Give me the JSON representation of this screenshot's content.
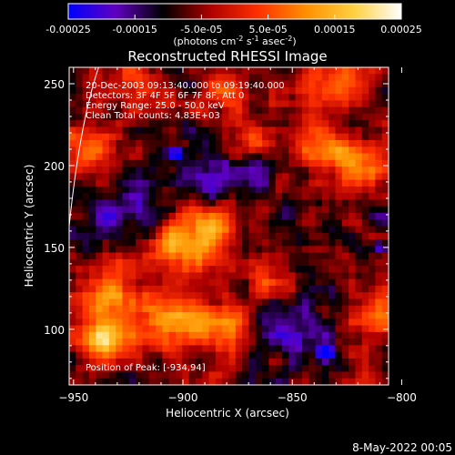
{
  "chart_data": {
    "type": "heatmap",
    "title": "Reconstructed RHESSI Image",
    "xlabel": "Heliocentric X (arcsec)",
    "ylabel": "Heliocentric Y (arcsec)",
    "xlim": [
      -952,
      -806
    ],
    "ylim": [
      66,
      260
    ],
    "x_ticks": [
      -950,
      -900,
      -850,
      -800
    ],
    "y_ticks": [
      100,
      150,
      200,
      250
    ],
    "info_lines": [
      "20-Dec-2003 09:13:40.000 to 09:19:40.000",
      "Detectors: 3F 4F 5F 6F 7F 8F, Att 0",
      "Energy Range: 25.0 - 50.0 keV",
      "Clean    Total counts: 4.83E+03"
    ],
    "peak_label": "Position of Peak:  [-934,94]",
    "peak_position": [
      -934,
      94
    ],
    "colorbar": {
      "min": -0.00025,
      "max": 0.00025,
      "tick_labels": [
        "-0.00025",
        "-0.00015",
        "-5.0e-05",
        "5.0e-05",
        "0.00015",
        "0.00025"
      ],
      "tick_values": [
        -0.00025,
        -0.00015,
        -5e-05,
        5e-05,
        0.00015,
        0.00025
      ],
      "unit_parts": [
        "(photons cm",
        "-2",
        " s",
        "-1",
        " asec",
        "-2",
        ")"
      ],
      "colormap": [
        "#0000ff",
        "#6000c0",
        "#000000",
        "#b00000",
        "#ff3000",
        "#ff9000",
        "#ffd040",
        "#ffffff"
      ]
    },
    "limb": {
      "description_free": true
    },
    "hotspots": [
      {
        "x": -935,
        "y": 94,
        "amp": 1.0,
        "s": 9
      },
      {
        "x": -935,
        "y": 120,
        "amp": 0.6,
        "s": 12
      },
      {
        "x": -905,
        "y": 105,
        "amp": 0.7,
        "s": 11
      },
      {
        "x": -880,
        "y": 100,
        "amp": 0.65,
        "s": 11
      },
      {
        "x": -900,
        "y": 150,
        "amp": 0.6,
        "s": 12
      },
      {
        "x": -888,
        "y": 160,
        "amp": 0.55,
        "s": 10
      },
      {
        "x": -870,
        "y": 215,
        "amp": 0.5,
        "s": 10
      },
      {
        "x": -880,
        "y": 240,
        "amp": 0.5,
        "s": 9
      },
      {
        "x": -835,
        "y": 210,
        "amp": 0.55,
        "s": 10
      },
      {
        "x": -815,
        "y": 200,
        "amp": 0.75,
        "s": 9
      },
      {
        "x": -830,
        "y": 250,
        "amp": 0.55,
        "s": 10
      },
      {
        "x": -810,
        "y": 110,
        "amp": 0.6,
        "s": 10
      },
      {
        "x": -860,
        "y": 130,
        "amp": 0.45,
        "s": 9
      },
      {
        "x": -945,
        "y": 210,
        "amp": 0.5,
        "s": 10
      },
      {
        "x": -920,
        "y": 250,
        "amp": 0.45,
        "s": 9
      }
    ],
    "negspots": [
      {
        "x": -903,
        "y": 207,
        "amp": -0.9,
        "s": 3
      },
      {
        "x": -835,
        "y": 85,
        "amp": -0.9,
        "s": 3
      },
      {
        "x": -810,
        "y": 150,
        "amp": -0.8,
        "s": 3
      },
      {
        "x": -880,
        "y": 200,
        "amp": -0.5,
        "s": 14
      },
      {
        "x": -850,
        "y": 100,
        "amp": -0.5,
        "s": 14
      },
      {
        "x": -930,
        "y": 170,
        "amp": -0.45,
        "s": 12
      }
    ]
  },
  "footer": {
    "timestamp": "8-May-2022 00:05"
  }
}
